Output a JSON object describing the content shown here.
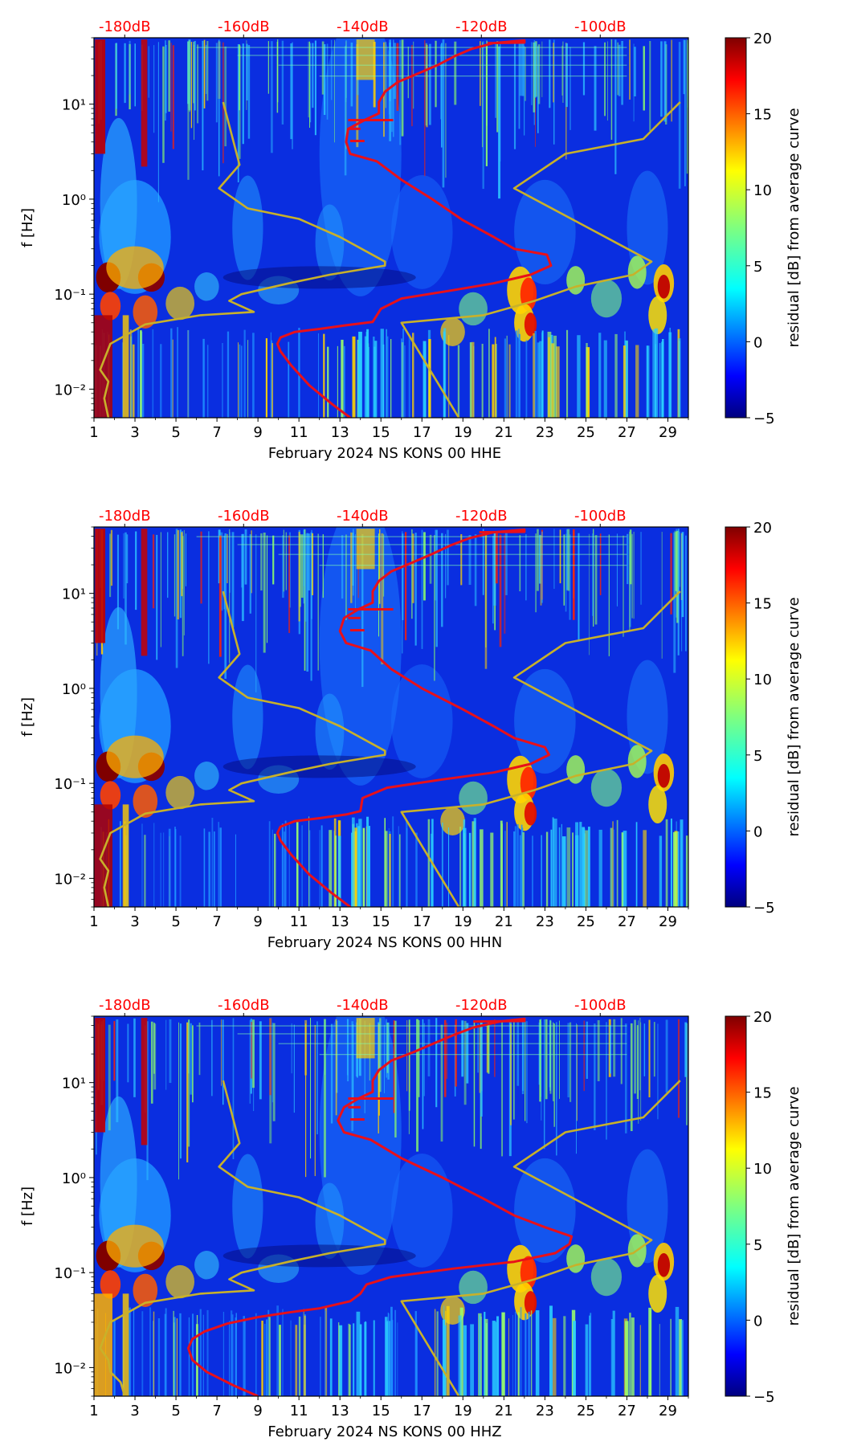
{
  "figure": {
    "colorbar": {
      "label": "residual [dB] from average curve",
      "ticks": [
        20,
        15,
        10,
        5,
        0,
        -5
      ],
      "tick_labels": [
        "20",
        "15",
        "10",
        "5",
        "0",
        "−5"
      ],
      "range": [
        -5,
        20
      ]
    },
    "axes": {
      "ylabel": "f [Hz]",
      "x_ticks": [
        1,
        3,
        5,
        7,
        9,
        11,
        13,
        15,
        17,
        19,
        21,
        23,
        25,
        27,
        29
      ],
      "x_tick_labels": [
        "1",
        "3",
        "5",
        "7",
        "9",
        "11",
        "13",
        "15",
        "17",
        "19",
        "21",
        "23",
        "25",
        "27",
        "29"
      ],
      "y_ticks": [
        0.01,
        0.1,
        1,
        10
      ],
      "y_tick_labels": [
        "10⁻²",
        "10⁻¹",
        "10⁰",
        "10¹"
      ],
      "top_tick_labels": [
        "-180dB",
        "-160dB",
        "-140dB",
        "-120dB",
        "-100dB"
      ],
      "top_tick_positions_day": [
        2.5,
        8.3,
        14.1,
        19.9,
        25.7
      ]
    },
    "colors": {
      "psd_curve": "#e8101a",
      "noise_model": "#c8b12a",
      "top_label": "#ff0000"
    }
  },
  "chart_data": [
    {
      "type": "heatmap",
      "title": "",
      "xlabel": "February 2024 NS KONS 00 HHE",
      "ylabel": "f [Hz]",
      "xlim": [
        1,
        30
      ],
      "ylim": [
        0.005,
        50
      ],
      "yscale": "log",
      "colorbar_label": "residual [dB] from average curve",
      "colorbar_range": [
        -5,
        20
      ],
      "top_axis_labels": [
        "-180dB",
        "-160dB",
        "-140dB",
        "-120dB",
        "-100dB"
      ],
      "series": [
        {
          "name": "average PSD curve",
          "color": "#e8101a",
          "points": [
            [
              13.5,
              0.005
            ],
            [
              12.6,
              0.007
            ],
            [
              11.5,
              0.011
            ],
            [
              10.6,
              0.018
            ],
            [
              10.1,
              0.025
            ],
            [
              9.95,
              0.03
            ],
            [
              10.1,
              0.035
            ],
            [
              10.8,
              0.04
            ],
            [
              12,
              0.043
            ],
            [
              13.3,
              0.047
            ],
            [
              14.6,
              0.051
            ],
            [
              15.0,
              0.07
            ],
            [
              16.0,
              0.09
            ],
            [
              18.5,
              0.11
            ],
            [
              20.5,
              0.13
            ],
            [
              22.3,
              0.16
            ],
            [
              23.3,
              0.2
            ],
            [
              23.1,
              0.26
            ],
            [
              21.5,
              0.3
            ],
            [
              20.5,
              0.4
            ],
            [
              19.0,
              0.6
            ],
            [
              17.5,
              1.0
            ],
            [
              16.0,
              1.6
            ],
            [
              14.8,
              2.5
            ],
            [
              13.5,
              3.0
            ],
            [
              13.3,
              4.0
            ],
            [
              13.4,
              5.5
            ],
            [
              14.2,
              6.8
            ],
            [
              14.9,
              8.0
            ],
            [
              14.9,
              10.5
            ],
            [
              15.2,
              13.5
            ],
            [
              15.8,
              17
            ],
            [
              16.8,
              21
            ],
            [
              17.8,
              26
            ],
            [
              18.6,
              32
            ],
            [
              19.4,
              38
            ],
            [
              20.5,
              44
            ],
            [
              22.0,
              47
            ],
            [
              22.0,
              44.5
            ],
            [
              20.2,
              44
            ]
          ]
        },
        {
          "name": "noise model",
          "color": "#c8b12a",
          "points": [
            [
              1.7,
              0.005
            ],
            [
              1.5,
              0.008
            ],
            [
              1.7,
              0.012
            ],
            [
              1.3,
              0.016
            ],
            [
              1.8,
              0.03
            ],
            [
              3.5,
              0.048
            ],
            [
              6.2,
              0.06
            ],
            [
              8.8,
              0.065
            ],
            [
              7.6,
              0.085
            ],
            [
              8.2,
              0.1
            ],
            [
              10.5,
              0.13
            ],
            [
              12.5,
              0.16
            ],
            [
              15.2,
              0.2
            ],
            [
              15.2,
              0.22
            ],
            [
              13.0,
              0.4
            ],
            [
              11.0,
              0.62
            ],
            [
              8.5,
              0.8
            ],
            [
              7.1,
              1.3
            ],
            [
              8.1,
              2.3
            ],
            [
              7.3,
              10.5
            ],
            "break",
            [
              18.8,
              0.005
            ],
            [
              16.0,
              0.05
            ],
            [
              20.0,
              0.06
            ],
            [
              22.5,
              0.085
            ],
            [
              24.5,
              0.12
            ],
            [
              27.3,
              0.16
            ],
            [
              28.2,
              0.22
            ],
            [
              25.5,
              0.45
            ],
            [
              21.5,
              1.3
            ],
            [
              24.0,
              3.0
            ],
            [
              27.8,
              4.3
            ],
            [
              29.6,
              10.5
            ]
          ]
        }
      ]
    },
    {
      "type": "heatmap",
      "title": "",
      "xlabel": "February 2024 NS KONS 00 HHN",
      "ylabel": "f [Hz]",
      "xlim": [
        1,
        30
      ],
      "ylim": [
        0.005,
        50
      ],
      "yscale": "log",
      "colorbar_label": "residual [dB] from average curve",
      "colorbar_range": [
        -5,
        20
      ],
      "top_axis_labels": [
        "-180dB",
        "-160dB",
        "-140dB",
        "-120dB",
        "-100dB"
      ],
      "series": [
        {
          "name": "average PSD curve",
          "color": "#e8101a",
          "points": [
            [
              13.5,
              0.005
            ],
            [
              12.6,
              0.007
            ],
            [
              11.5,
              0.011
            ],
            [
              10.6,
              0.018
            ],
            [
              10.1,
              0.025
            ],
            [
              9.95,
              0.03
            ],
            [
              10.1,
              0.035
            ],
            [
              10.8,
              0.04
            ],
            [
              12,
              0.043
            ],
            [
              13.3,
              0.047
            ],
            [
              14.0,
              0.051
            ],
            [
              14.1,
              0.07
            ],
            [
              15.3,
              0.09
            ],
            [
              18.0,
              0.11
            ],
            [
              20.5,
              0.13
            ],
            [
              22.3,
              0.16
            ],
            [
              23.2,
              0.2
            ],
            [
              23.0,
              0.24
            ],
            [
              21.5,
              0.3
            ],
            [
              20.5,
              0.4
            ],
            [
              19.0,
              0.6
            ],
            [
              17.0,
              1.0
            ],
            [
              15.5,
              1.6
            ],
            [
              14.5,
              2.5
            ],
            [
              13.3,
              3.0
            ],
            [
              13.0,
              4.0
            ],
            [
              13.2,
              5.5
            ],
            [
              13.9,
              6.8
            ],
            [
              14.6,
              8.0
            ],
            [
              14.6,
              10.5
            ],
            [
              14.9,
              13.5
            ],
            [
              15.5,
              17
            ],
            [
              16.5,
              21
            ],
            [
              17.5,
              26
            ],
            [
              18.4,
              32
            ],
            [
              19.3,
              38
            ],
            [
              20.5,
              44
            ],
            [
              22.0,
              47
            ],
            [
              22.0,
              44.5
            ],
            [
              19.8,
              44
            ]
          ]
        },
        {
          "name": "noise model",
          "color": "#c8b12a",
          "points": [
            [
              1.7,
              0.005
            ],
            [
              1.5,
              0.008
            ],
            [
              1.7,
              0.012
            ],
            [
              1.3,
              0.016
            ],
            [
              1.8,
              0.03
            ],
            [
              3.5,
              0.048
            ],
            [
              6.2,
              0.06
            ],
            [
              8.8,
              0.065
            ],
            [
              7.6,
              0.085
            ],
            [
              8.2,
              0.1
            ],
            [
              10.5,
              0.13
            ],
            [
              12.5,
              0.16
            ],
            [
              15.2,
              0.2
            ],
            [
              15.2,
              0.22
            ],
            [
              13.0,
              0.4
            ],
            [
              11.0,
              0.62
            ],
            [
              8.5,
              0.8
            ],
            [
              7.1,
              1.3
            ],
            [
              8.1,
              2.3
            ],
            [
              7.3,
              10.5
            ],
            "break",
            [
              18.8,
              0.005
            ],
            [
              16.0,
              0.05
            ],
            [
              20.0,
              0.06
            ],
            [
              22.5,
              0.085
            ],
            [
              24.5,
              0.12
            ],
            [
              27.3,
              0.16
            ],
            [
              28.2,
              0.22
            ],
            [
              25.5,
              0.45
            ],
            [
              21.5,
              1.3
            ],
            [
              24.0,
              3.0
            ],
            [
              27.8,
              4.3
            ],
            [
              29.6,
              10.5
            ]
          ]
        }
      ]
    },
    {
      "type": "heatmap",
      "title": "",
      "xlabel": "February 2024 NS KONS 00 HHZ",
      "ylabel": "f [Hz]",
      "xlim": [
        1,
        30
      ],
      "ylim": [
        0.005,
        50
      ],
      "yscale": "log",
      "colorbar_label": "residual [dB] from average curve",
      "colorbar_range": [
        -5,
        20
      ],
      "top_axis_labels": [
        "-180dB",
        "-160dB",
        "-140dB",
        "-120dB",
        "-100dB"
      ],
      "series": [
        {
          "name": "average PSD curve",
          "color": "#e8101a",
          "points": [
            [
              9.0,
              0.005
            ],
            [
              7.8,
              0.0065
            ],
            [
              6.5,
              0.009
            ],
            [
              5.8,
              0.012
            ],
            [
              5.6,
              0.016
            ],
            [
              5.8,
              0.02
            ],
            [
              6.4,
              0.024
            ],
            [
              7.5,
              0.029
            ],
            [
              9.0,
              0.034
            ],
            [
              10.5,
              0.038
            ],
            [
              12.0,
              0.042
            ],
            [
              13.5,
              0.05
            ],
            [
              14.0,
              0.06
            ],
            [
              14.3,
              0.075
            ],
            [
              15.5,
              0.09
            ],
            [
              18.5,
              0.11
            ],
            [
              21.5,
              0.13
            ],
            [
              23.5,
              0.16
            ],
            [
              24.2,
              0.2
            ],
            [
              24.3,
              0.24
            ],
            [
              23.0,
              0.3
            ],
            [
              21.5,
              0.4
            ],
            [
              20.0,
              0.6
            ],
            [
              18.0,
              1.0
            ],
            [
              16.0,
              1.6
            ],
            [
              14.5,
              2.5
            ],
            [
              13.2,
              3.0
            ],
            [
              12.9,
              4.0
            ],
            [
              13.2,
              5.5
            ],
            [
              13.9,
              6.8
            ],
            [
              14.6,
              8.0
            ],
            [
              14.6,
              10.5
            ],
            [
              14.9,
              13.5
            ],
            [
              15.5,
              17
            ],
            [
              16.6,
              21
            ],
            [
              17.6,
              26
            ],
            [
              18.6,
              32
            ],
            [
              19.5,
              38
            ],
            [
              20.8,
              44
            ],
            [
              22.0,
              47
            ],
            [
              22.0,
              44.5
            ],
            [
              19.5,
              44
            ]
          ]
        },
        {
          "name": "noise model",
          "color": "#c8b12a",
          "points": [
            [
              2.5,
              0.005
            ],
            [
              2.3,
              0.007
            ],
            [
              1.8,
              0.009
            ],
            [
              1.7,
              0.012
            ],
            [
              1.3,
              0.016
            ],
            [
              1.8,
              0.03
            ],
            [
              3.5,
              0.048
            ],
            [
              6.2,
              0.06
            ],
            [
              8.8,
              0.065
            ],
            [
              7.6,
              0.085
            ],
            [
              8.2,
              0.1
            ],
            [
              10.5,
              0.13
            ],
            [
              12.5,
              0.16
            ],
            [
              15.2,
              0.2
            ],
            [
              15.2,
              0.22
            ],
            [
              13.0,
              0.4
            ],
            [
              11.0,
              0.62
            ],
            [
              8.5,
              0.8
            ],
            [
              7.1,
              1.3
            ],
            [
              8.1,
              2.3
            ],
            [
              7.3,
              10.5
            ],
            "break",
            [
              18.8,
              0.005
            ],
            [
              16.0,
              0.05
            ],
            [
              20.0,
              0.06
            ],
            [
              22.5,
              0.085
            ],
            [
              24.5,
              0.12
            ],
            [
              27.3,
              0.16
            ],
            [
              28.2,
              0.22
            ],
            [
              25.5,
              0.45
            ],
            [
              21.5,
              1.3
            ],
            [
              24.0,
              3.0
            ],
            [
              27.8,
              4.3
            ],
            [
              29.6,
              10.5
            ]
          ]
        }
      ]
    }
  ]
}
